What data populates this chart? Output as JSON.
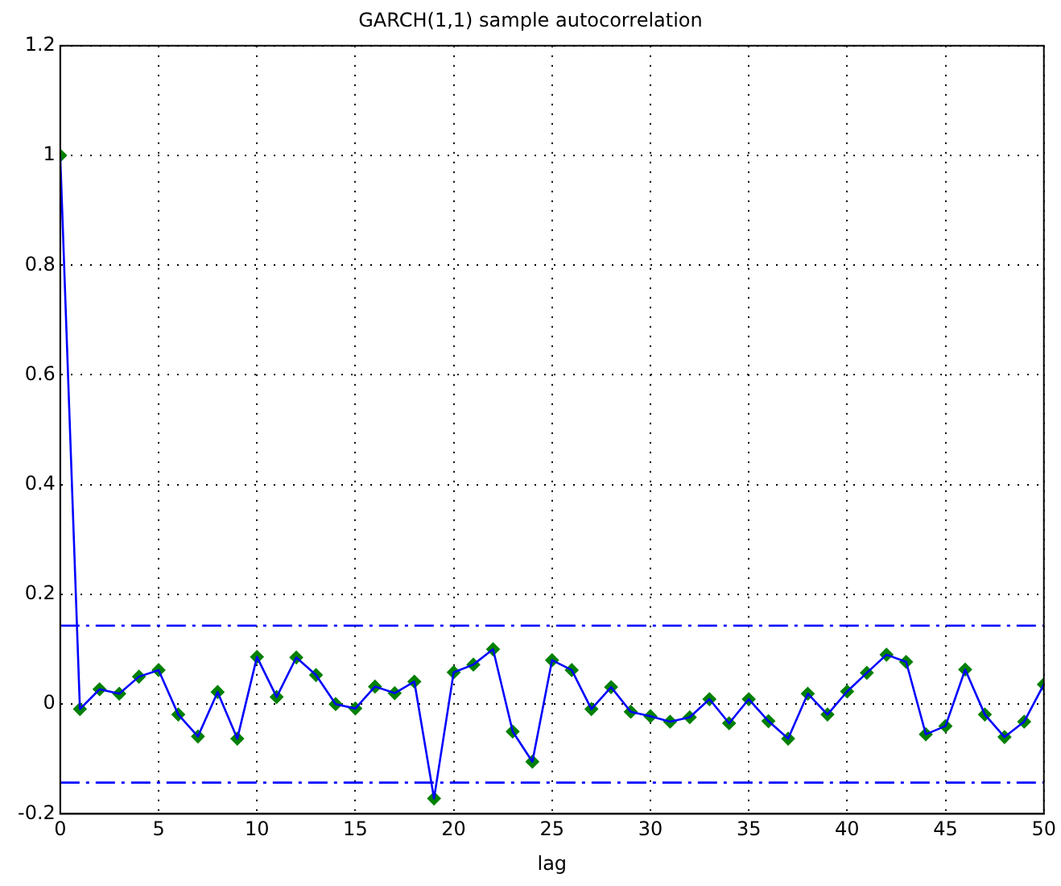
{
  "chart_data": {
    "type": "line",
    "title": "GARCH(1,1) sample autocorrelation",
    "xlabel": "lag",
    "x": [
      0,
      1,
      2,
      3,
      4,
      5,
      6,
      7,
      8,
      9,
      10,
      11,
      12,
      13,
      14,
      15,
      16,
      17,
      18,
      19,
      20,
      21,
      22,
      23,
      24,
      25,
      26,
      27,
      28,
      29,
      30,
      31,
      32,
      33,
      34,
      35,
      36,
      37,
      38,
      39,
      40,
      41,
      42,
      43,
      44,
      45,
      46,
      47,
      48,
      49,
      50
    ],
    "series": [
      {
        "color": "#0000ff",
        "marker": "none",
        "values": [
          1,
          -0.009,
          0.027,
          0.019,
          0.05,
          0.062,
          -0.019,
          -0.059,
          0.022,
          -0.063,
          0.086,
          0.013,
          0.085,
          0.053,
          0,
          -0.008,
          0.032,
          0.02,
          0.041,
          -0.172,
          0.058,
          0.072,
          0.1,
          -0.05,
          -0.105,
          0.08,
          0.062,
          -0.009,
          0.031,
          -0.014,
          -0.022,
          -0.032,
          -0.024,
          0.009,
          -0.035,
          0.009,
          -0.031,
          -0.063,
          0.019,
          -0.019,
          0.023,
          0.057,
          0.09,
          0.077,
          -0.055,
          -0.04,
          0.063,
          -0.019,
          -0.06,
          -0.032,
          0.036
        ]
      },
      {
        "type": "scatter",
        "color": "#008000",
        "marker": "diamond",
        "values": [
          1,
          -0.009,
          0.027,
          0.019,
          0.05,
          0.062,
          -0.019,
          -0.059,
          0.022,
          -0.063,
          0.086,
          0.013,
          0.085,
          0.053,
          0,
          -0.008,
          0.032,
          0.02,
          0.041,
          -0.172,
          0.058,
          0.072,
          0.1,
          -0.05,
          -0.105,
          0.08,
          0.062,
          -0.009,
          0.031,
          -0.014,
          -0.022,
          -0.032,
          -0.024,
          0.009,
          -0.035,
          0.009,
          -0.031,
          -0.063,
          0.019,
          -0.019,
          0.023,
          0.057,
          0.09,
          0.077,
          -0.055,
          -0.04,
          0.063,
          -0.019,
          -0.06,
          -0.032,
          0.036
        ]
      }
    ],
    "ref_lines": [
      {
        "axis": "y",
        "value": 0.143,
        "color": "#0000ff",
        "line_style": "dashed"
      },
      {
        "axis": "y",
        "value": -0.143,
        "color": "#0000ff",
        "line_style": "dashed"
      }
    ],
    "xlim": [
      0,
      50
    ],
    "xticks": [
      0,
      5,
      10,
      15,
      20,
      25,
      30,
      35,
      40,
      45,
      50
    ],
    "ylim": [
      -0.2,
      1.2
    ],
    "yticks": [
      -0.2,
      0,
      0.2,
      0.4,
      0.6,
      0.8,
      1,
      1.2
    ],
    "grid": true,
    "legend": false
  }
}
